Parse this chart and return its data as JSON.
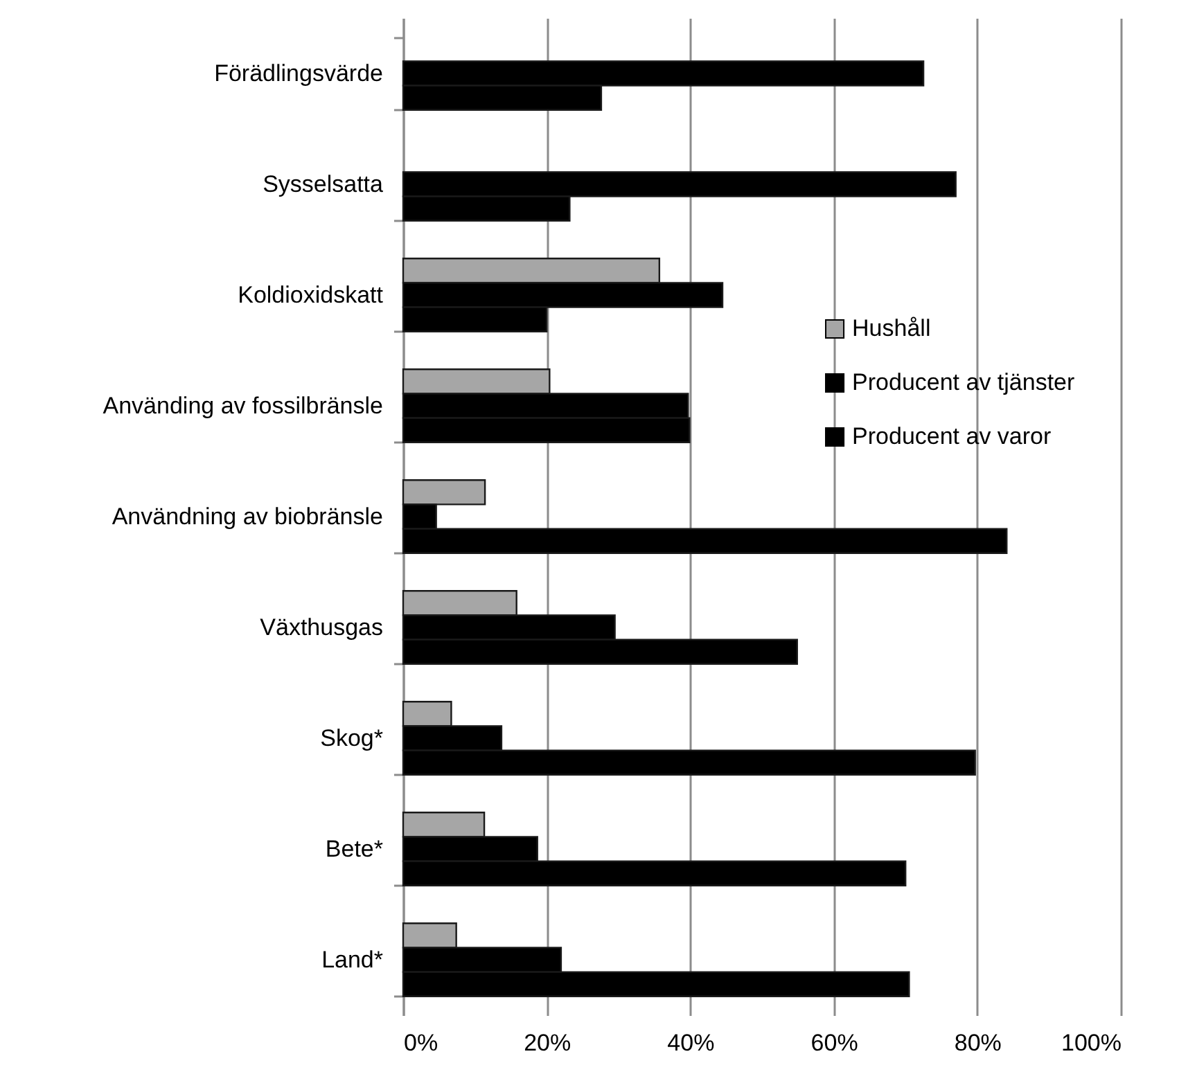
{
  "chart_data": {
    "type": "bar",
    "orientation": "horizontal",
    "categories": [
      "Förädlingsvärde",
      "Sysselsatta",
      "Koldioxidskatt",
      "Använding av fossilbränsle",
      "Användning av biobränsle",
      "Växthusgas",
      "Skog*",
      "Bete*",
      "Land*"
    ],
    "series": [
      {
        "name": "Hushåll",
        "color": "#a6a6a6",
        "values": [
          null,
          null,
          35.7,
          20.4,
          11.4,
          15.8,
          6.7,
          11.3,
          7.4
        ]
      },
      {
        "name": "Producent av tjänster",
        "color": "#000000",
        "values": [
          72.5,
          77.0,
          44.5,
          39.7,
          4.6,
          29.5,
          13.7,
          18.7,
          22.0
        ]
      },
      {
        "name": "Producent av varor",
        "color": "#000000",
        "values": [
          27.6,
          23.2,
          20.0,
          39.9,
          84.1,
          54.9,
          79.7,
          70.0,
          70.5
        ]
      }
    ],
    "xlim": [
      0,
      100
    ],
    "xticks": [
      {
        "value": 0,
        "label": "0%"
      },
      {
        "value": 20,
        "label": "20%"
      },
      {
        "value": 40,
        "label": "40%"
      },
      {
        "value": 60,
        "label": "60%"
      },
      {
        "value": 80,
        "label": "80%"
      },
      {
        "value": 100,
        "label": "100%"
      }
    ],
    "grid": "x",
    "legend": "right"
  }
}
